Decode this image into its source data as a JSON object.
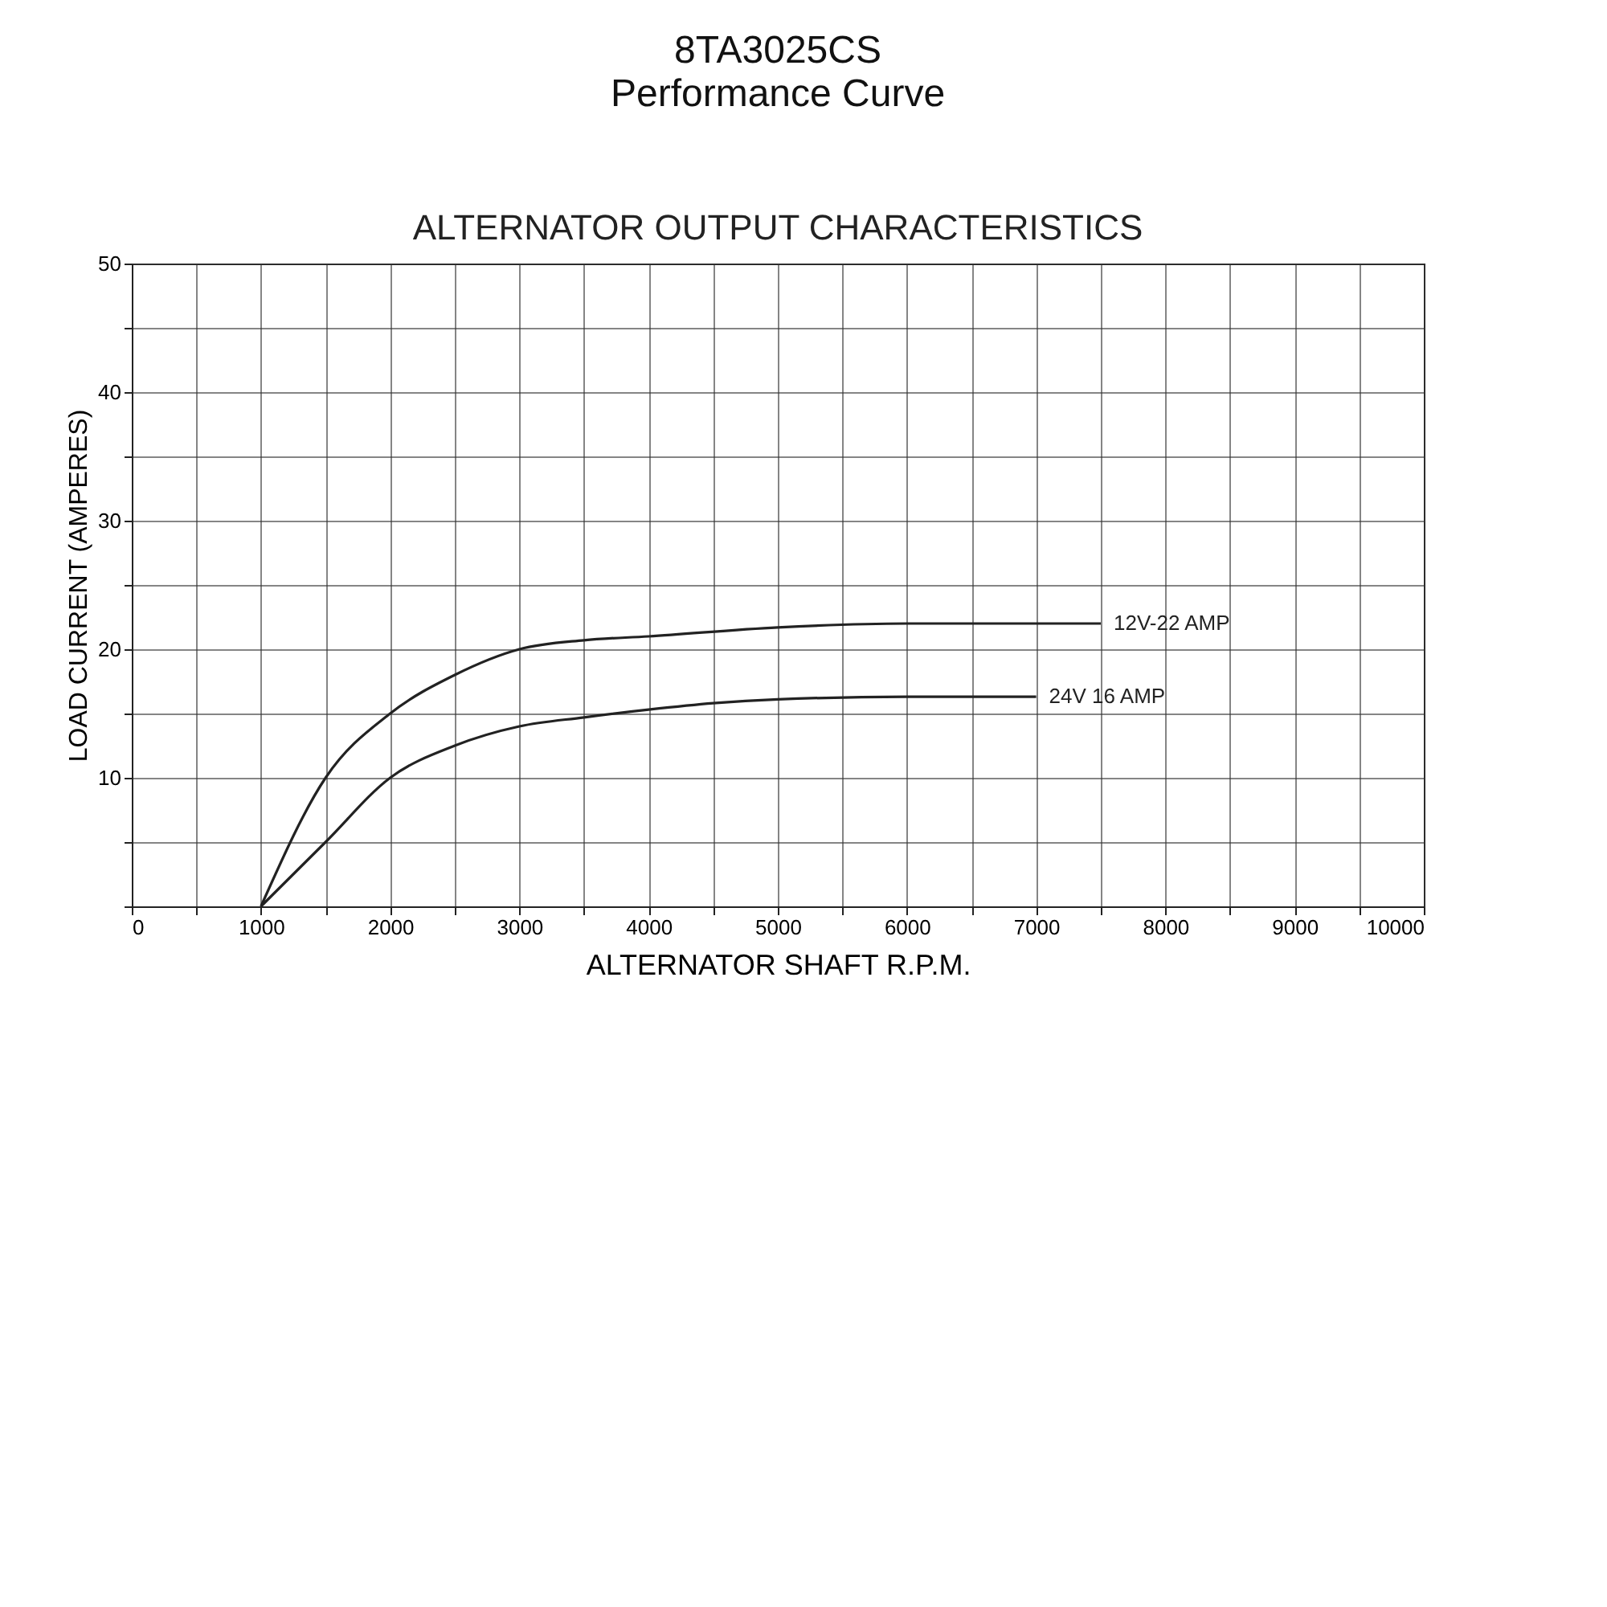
{
  "chart_data": {
    "type": "line",
    "title": "8TA3025CS",
    "subtitle": "Performance Curve",
    "annotations": [
      "ALTERNATOR OUTPUT CHARACTERISTICS"
    ],
    "xlabel": "ALTERNATOR SHAFT R.P.M.",
    "ylabel": "LOAD CURRENT (AMPERES)",
    "xlim": [
      0,
      10000
    ],
    "ylim": [
      0,
      50
    ],
    "xticks": [
      0,
      {
        "value": 500,
        "label": null
      },
      1000,
      {
        "value": 1500,
        "label": null
      },
      2000,
      {
        "value": 2500,
        "label": null
      },
      3000,
      {
        "value": 3500,
        "label": null
      },
      4000,
      {
        "value": 4500,
        "label": null
      },
      5000,
      {
        "value": 5500,
        "label": null
      },
      6000,
      {
        "value": 6500,
        "label": null
      },
      7000,
      {
        "value": 7500,
        "label": null
      },
      8000,
      {
        "value": 8500,
        "label": null
      },
      9000,
      {
        "value": 9500,
        "label": null
      },
      10000
    ],
    "yticks": [
      {
        "value": 0,
        "label": null
      },
      {
        "value": 5,
        "label": null
      },
      10,
      {
        "value": 15,
        "label": null
      },
      20,
      {
        "value": 25,
        "label": null
      },
      30,
      {
        "value": 35,
        "label": null
      },
      40,
      {
        "value": 45,
        "label": null
      },
      50
    ],
    "grid": true,
    "marker": "none",
    "line_style": "solid",
    "series": [
      {
        "name": "12V-22 AMP",
        "color": "#222222",
        "x": [
          1000,
          1500,
          2000,
          2500,
          3000,
          3500,
          4000,
          5000,
          6000,
          7000,
          7500
        ],
        "values": [
          0,
          10,
          15,
          18,
          20,
          20.7,
          21,
          21.7,
          22,
          22,
          22
        ]
      },
      {
        "name": "24V 16 AMP",
        "color": "#222222",
        "x": [
          1000,
          1500,
          2000,
          2500,
          3000,
          3500,
          4000,
          4500,
          5000,
          6000,
          7000
        ],
        "values": [
          0,
          5,
          10,
          12.5,
          14,
          14.7,
          15.3,
          15.8,
          16.1,
          16.3,
          16.3
        ]
      }
    ]
  }
}
